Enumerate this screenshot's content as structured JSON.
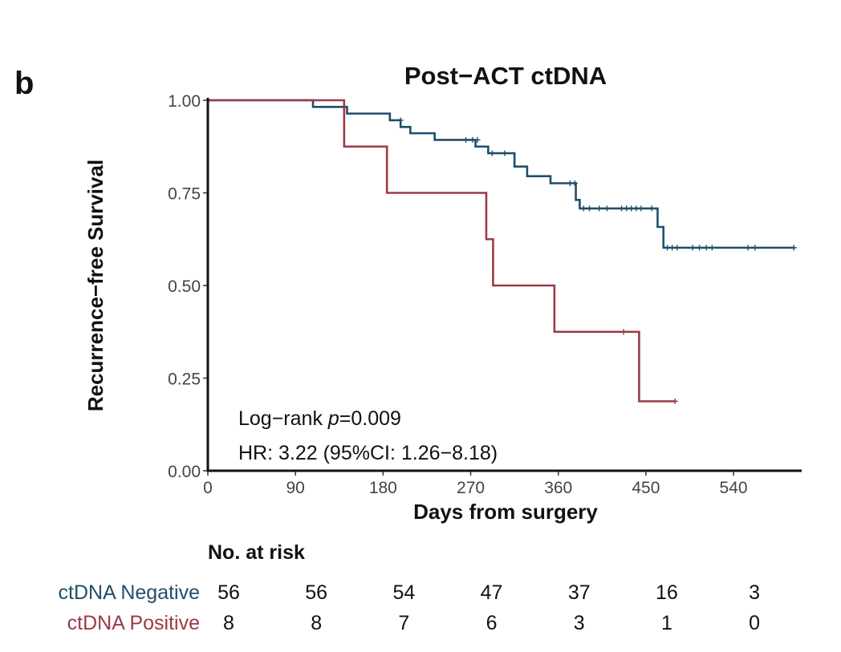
{
  "panel_label": "b",
  "chart_data": {
    "type": "line",
    "subtype": "kaplan-meier",
    "title": "Post−ACT ctDNA",
    "xlabel": "Days from surgery",
    "ylabel": "Recurrence−free Survival",
    "xlim": [
      0,
      610
    ],
    "ylim": [
      0,
      1
    ],
    "x_ticks": [
      0,
      90,
      180,
      270,
      360,
      450,
      540
    ],
    "x_tick_labels": [
      "0",
      "90",
      "180",
      "270",
      "360",
      "450",
      "540"
    ],
    "y_ticks": [
      0,
      0.25,
      0.5,
      0.75,
      1.0
    ],
    "y_tick_labels": [
      "0.00",
      "0.25",
      "0.50",
      "0.75",
      "1.00"
    ],
    "series": [
      {
        "name": "ctDNA Negative",
        "color": "#1f4e6b",
        "steps": [
          [
            0,
            1.0
          ],
          [
            108,
            0.982
          ],
          [
            143,
            0.964
          ],
          [
            187,
            0.946
          ],
          [
            198,
            0.928
          ],
          [
            208,
            0.911
          ],
          [
            233,
            0.893
          ],
          [
            275,
            0.875
          ],
          [
            288,
            0.857
          ],
          [
            315,
            0.821
          ],
          [
            328,
            0.795
          ],
          [
            352,
            0.776
          ],
          [
            378,
            0.731
          ],
          [
            382,
            0.708
          ],
          [
            462,
            0.658
          ],
          [
            468,
            0.602
          ]
        ],
        "end_x": 602,
        "censor": [
          [
            198,
            0.946
          ],
          [
            265,
            0.893
          ],
          [
            272,
            0.893
          ],
          [
            277,
            0.893
          ],
          [
            292,
            0.857
          ],
          [
            305,
            0.857
          ],
          [
            372,
            0.776
          ],
          [
            377,
            0.776
          ],
          [
            386,
            0.708
          ],
          [
            392,
            0.708
          ],
          [
            402,
            0.708
          ],
          [
            410,
            0.708
          ],
          [
            425,
            0.708
          ],
          [
            430,
            0.708
          ],
          [
            435,
            0.708
          ],
          [
            440,
            0.708
          ],
          [
            445,
            0.708
          ],
          [
            456,
            0.708
          ],
          [
            472,
            0.602
          ],
          [
            477,
            0.602
          ],
          [
            482,
            0.602
          ],
          [
            498,
            0.602
          ],
          [
            505,
            0.602
          ],
          [
            512,
            0.602
          ],
          [
            518,
            0.602
          ],
          [
            555,
            0.602
          ],
          [
            562,
            0.602
          ],
          [
            602,
            0.602
          ]
        ]
      },
      {
        "name": "ctDNA Positive",
        "color": "#9b3a48",
        "steps": [
          [
            0,
            1.0
          ],
          [
            140,
            0.875
          ],
          [
            184,
            0.75
          ],
          [
            286,
            0.625
          ],
          [
            293,
            0.5
          ],
          [
            356,
            0.375
          ],
          [
            443,
            0.1875
          ]
        ],
        "end_x": 480,
        "censor": [
          [
            427,
            0.375
          ],
          [
            480,
            0.1875
          ]
        ]
      }
    ],
    "annotations": {
      "logrank_prefix": "Log−rank ",
      "logrank_p": "p",
      "logrank_value": "=0.009",
      "hr": "HR: 3.22 (95%CI: 1.26−8.18)"
    }
  },
  "risk_table": {
    "heading": "No. at risk",
    "rows": [
      {
        "label": "ctDNA Negative",
        "color": "#1f4e6b",
        "values": [
          "56",
          "56",
          "54",
          "47",
          "37",
          "16",
          "3"
        ]
      },
      {
        "label": "ctDNA Positive",
        "color": "#9b3a48",
        "values": [
          "8",
          "8",
          "7",
          "6",
          "3",
          "1",
          "0"
        ]
      }
    ]
  }
}
